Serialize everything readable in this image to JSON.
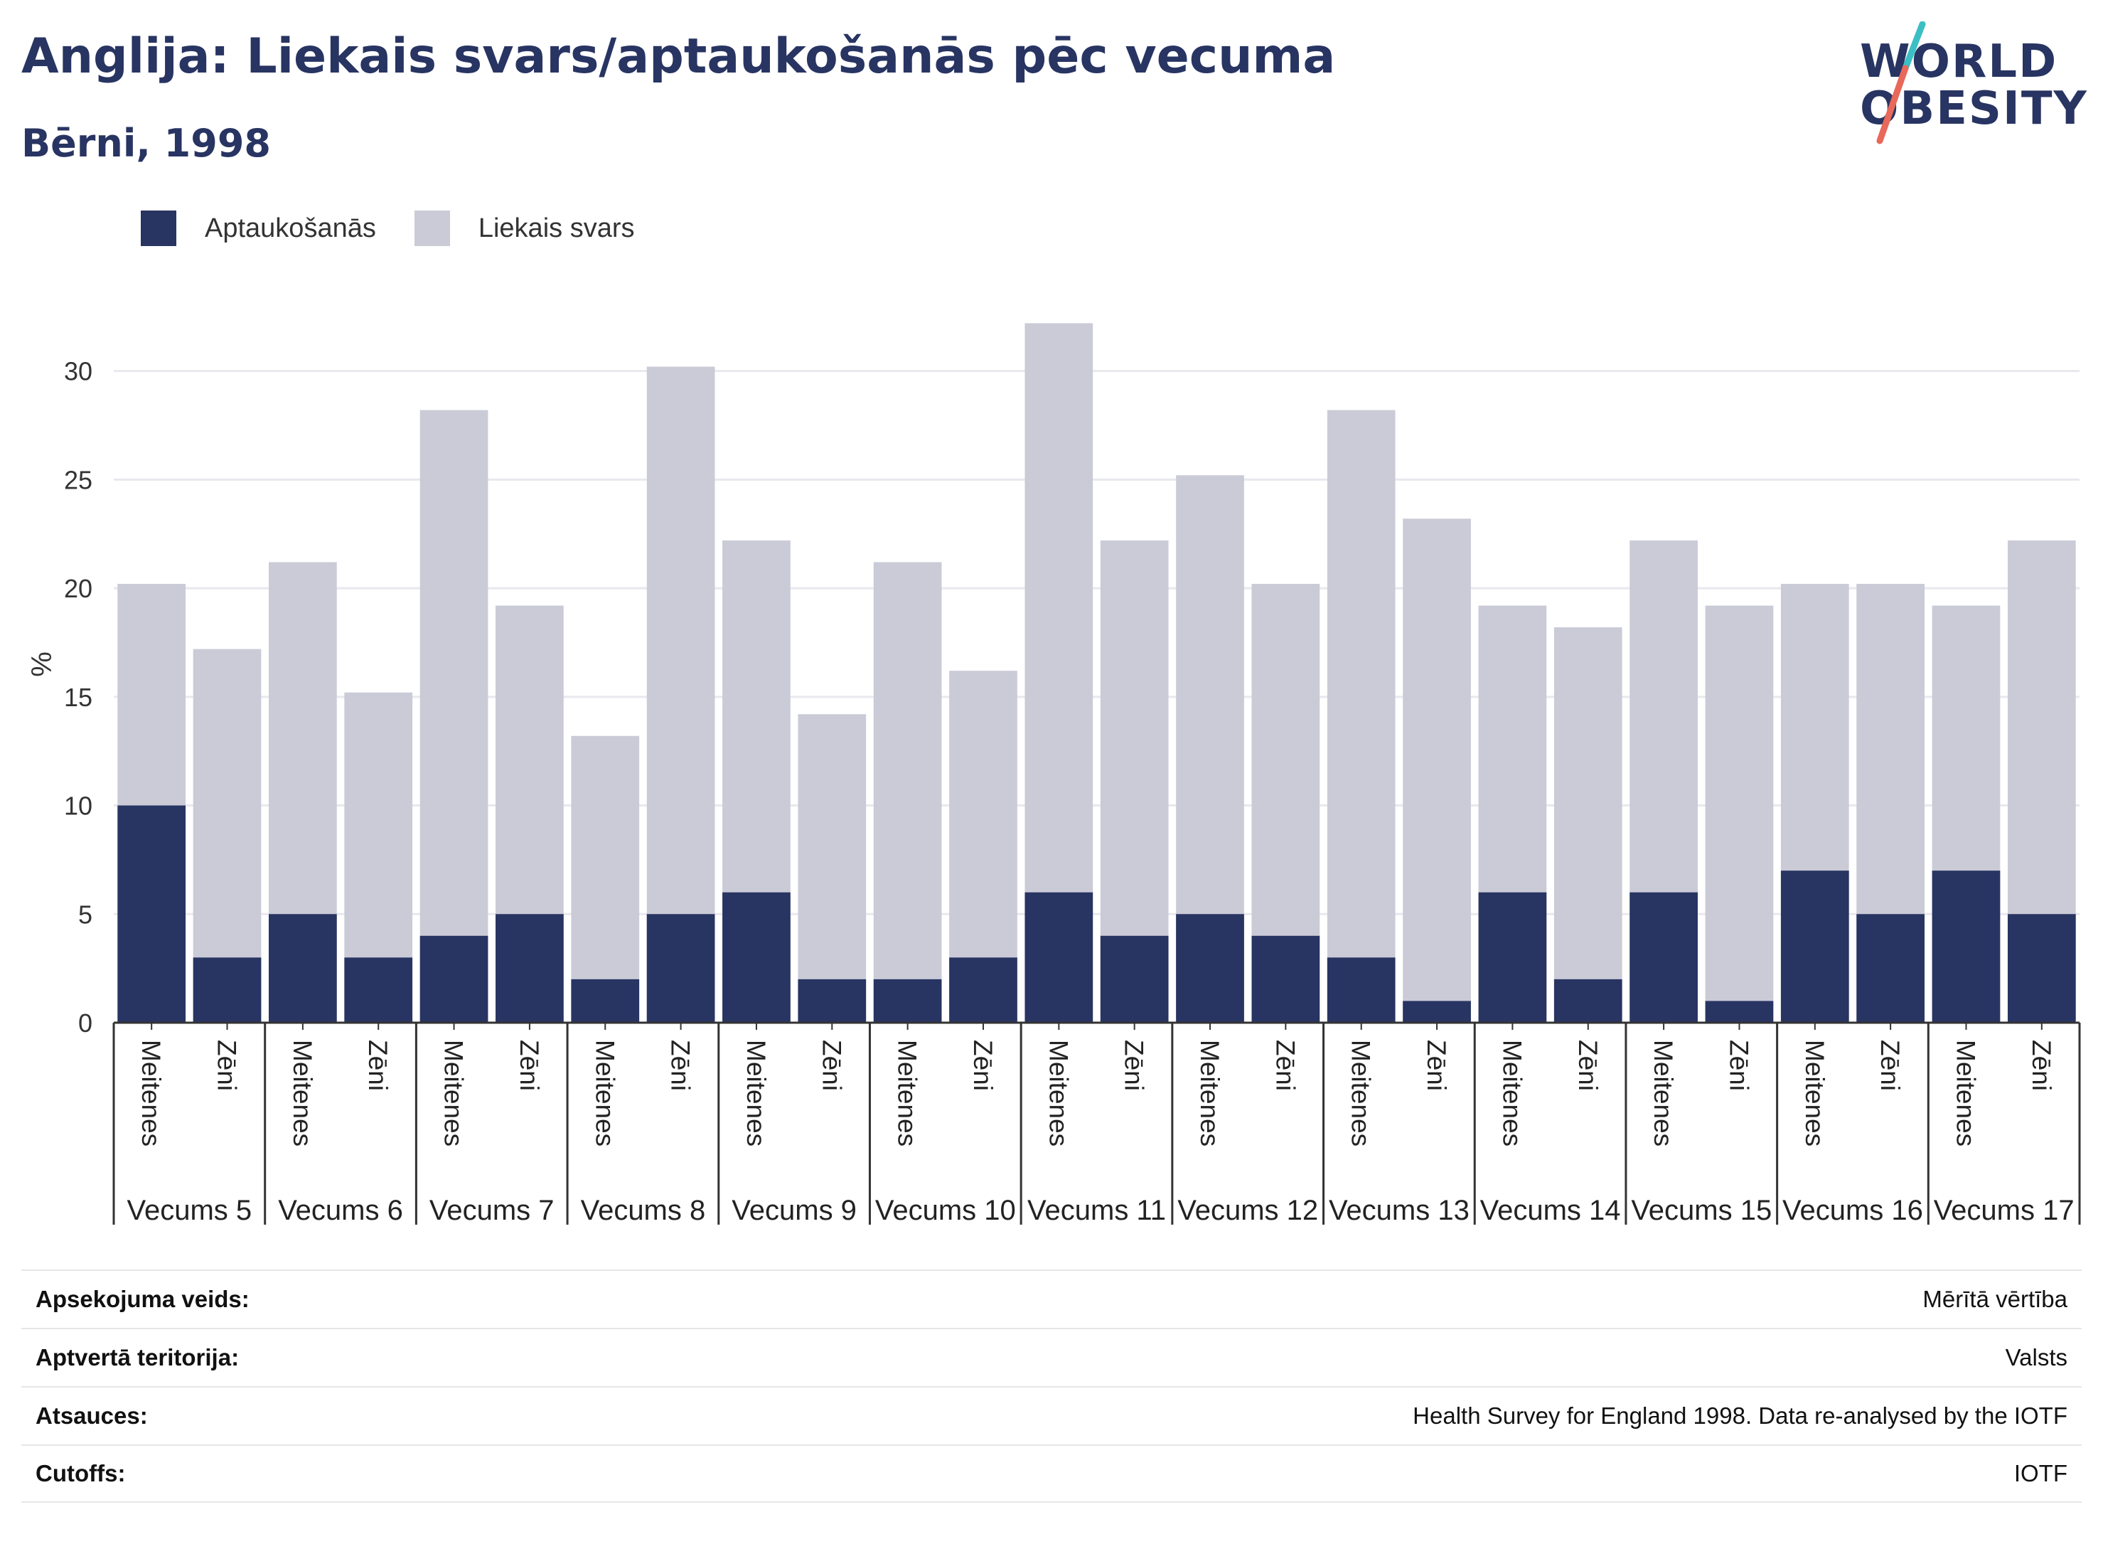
{
  "header": {
    "title": "Anglija: Liekais svars/aptaukošanās pēc vecuma",
    "subtitle": "Bērni, 1998"
  },
  "logo": {
    "line1": "WORLD",
    "line2": "OBESITY"
  },
  "colors": {
    "obesity": "#283462",
    "overweight": "#cacbd7",
    "axis": "#333333",
    "grid": "#e8e8ee",
    "logo_teal": "#3bbfc4",
    "logo_coral": "#e8685a"
  },
  "chart_data": {
    "type": "bar",
    "stacked": false,
    "overlapping": true,
    "ylabel": "%",
    "xlabel": "",
    "ylim": [
      0,
      33
    ],
    "yticks": [
      0,
      5,
      10,
      15,
      20,
      25,
      30
    ],
    "grid": true,
    "legend": "top-left",
    "sex_labels": [
      "Meitenes",
      "Zēni"
    ],
    "groups": [
      "Vecums 5",
      "Vecums 6",
      "Vecums 7",
      "Vecums 8",
      "Vecums 9",
      "Vecums 10",
      "Vecums 11",
      "Vecums 12",
      "Vecums 13",
      "Vecums 14",
      "Vecums 15",
      "Vecums 16",
      "Vecums 17"
    ],
    "series": [
      {
        "name": "Aptaukošanās",
        "color": "#283462",
        "values": [
          10,
          3,
          5,
          3,
          4,
          5,
          2,
          5,
          6,
          2,
          2,
          3,
          6,
          4,
          5,
          4,
          3,
          1,
          6,
          2,
          6,
          1,
          7,
          5,
          7,
          5
        ]
      },
      {
        "name": "Liekais svars",
        "color": "#cacbd7",
        "values": [
          20.2,
          17.2,
          21.2,
          15.2,
          28.2,
          19.2,
          13.2,
          30.2,
          22.2,
          14.2,
          21.2,
          16.2,
          32.2,
          22.2,
          25.2,
          20.2,
          28.2,
          23.2,
          19.2,
          18.2,
          22.2,
          19.2,
          20.2,
          20.2,
          19.2,
          22.2
        ]
      }
    ]
  },
  "info": [
    {
      "label": "Apsekojuma veids:",
      "value": "Mērītā vērtība"
    },
    {
      "label": "Aptvertā teritorija:",
      "value": "Valsts"
    },
    {
      "label": "Atsauces:",
      "value": "Health Survey for England 1998. Data re-analysed by the IOTF"
    },
    {
      "label": "Cutoffs:",
      "value": "IOTF"
    }
  ]
}
